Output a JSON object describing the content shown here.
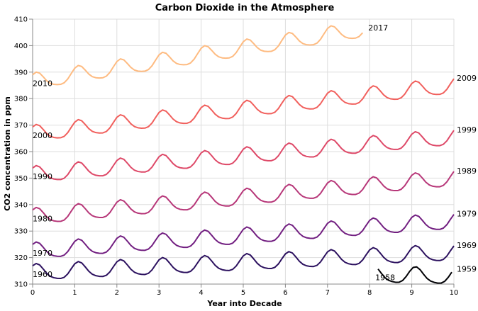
{
  "chart_data": {
    "type": "line",
    "title": "Carbon Dioxide in the Atmosphere",
    "xlabel": "Year into Decade",
    "ylabel": "CO2 concentration in ppm",
    "xlim": [
      0,
      10
    ],
    "ylim": [
      310,
      410
    ],
    "x_ticks": [
      "0",
      "1",
      "2",
      "3",
      "4",
      "5",
      "6",
      "7",
      "8",
      "9",
      "10"
    ],
    "y_ticks": [
      "310",
      "320",
      "330",
      "340",
      "350",
      "360",
      "370",
      "380",
      "390",
      "400",
      "410"
    ],
    "grid": true,
    "seasonal_amplitude_ppm": 3,
    "series": [
      {
        "decade": "1950s",
        "start_label": "1958",
        "end_label": "1959",
        "color": "#000004",
        "x_start": 8.2,
        "x_end": 10,
        "points": [
          [
            8.2,
            315.7
          ],
          [
            10,
            315.5
          ]
        ]
      },
      {
        "decade": "1960s",
        "start_label": "1960",
        "end_label": "1969",
        "color": "#2c115f",
        "x_start": 0,
        "x_end": 10,
        "points": [
          [
            0,
            316.9
          ],
          [
            10,
            324.4
          ]
        ]
      },
      {
        "decade": "1970s",
        "start_label": "1970",
        "end_label": "1979",
        "color": "#721f81",
        "x_start": 0,
        "x_end": 10,
        "points": [
          [
            0,
            325.0
          ],
          [
            10,
            336.3
          ]
        ]
      },
      {
        "decade": "1980s",
        "start_label": "1980",
        "end_label": "1989",
        "color": "#b73779",
        "x_start": 0,
        "x_end": 10,
        "points": [
          [
            0,
            338.0
          ],
          [
            10,
            352.5
          ]
        ]
      },
      {
        "decade": "1990s",
        "start_label": "1990",
        "end_label": "1999",
        "color": "#de4968",
        "x_start": 0,
        "x_end": 10,
        "points": [
          [
            0,
            353.8
          ],
          [
            10,
            368.0
          ]
        ]
      },
      {
        "decade": "2000s",
        "start_label": "2000",
        "end_label": "2009",
        "color": "#f1605d",
        "x_start": 0,
        "x_end": 10,
        "points": [
          [
            0,
            369.3
          ],
          [
            10,
            387.5
          ]
        ]
      },
      {
        "decade": "2010s",
        "start_label": "2010",
        "end_label": "2017",
        "color": "#febb81",
        "x_start": 0,
        "x_end": 7.9,
        "points": [
          [
            0,
            389.0
          ],
          [
            7.9,
            406.5
          ]
        ]
      }
    ]
  }
}
